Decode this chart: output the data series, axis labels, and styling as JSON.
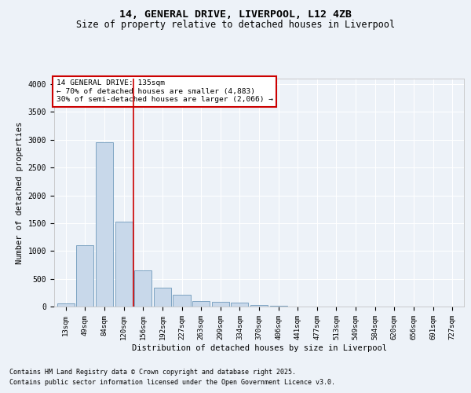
{
  "title_line1": "14, GENERAL DRIVE, LIVERPOOL, L12 4ZB",
  "title_line2": "Size of property relative to detached houses in Liverpool",
  "xlabel": "Distribution of detached houses by size in Liverpool",
  "ylabel": "Number of detached properties",
  "bar_labels": [
    "13sqm",
    "49sqm",
    "84sqm",
    "120sqm",
    "156sqm",
    "192sqm",
    "227sqm",
    "263sqm",
    "299sqm",
    "334sqm",
    "370sqm",
    "406sqm",
    "441sqm",
    "477sqm",
    "513sqm",
    "549sqm",
    "584sqm",
    "620sqm",
    "656sqm",
    "691sqm",
    "727sqm"
  ],
  "bar_values": [
    50,
    1100,
    2950,
    1530,
    650,
    340,
    215,
    95,
    90,
    65,
    30,
    10,
    5,
    0,
    0,
    0,
    0,
    0,
    0,
    0,
    0
  ],
  "bar_color": "#c8d8ea",
  "bar_edge_color": "#5a8ab0",
  "vline_x": 3.5,
  "vline_color": "#cc0000",
  "annotation_text": "14 GENERAL DRIVE: 135sqm\n← 70% of detached houses are smaller (4,883)\n30% of semi-detached houses are larger (2,066) →",
  "annotation_box_color": "#ffffff",
  "annotation_border_color": "#cc0000",
  "ylim": [
    0,
    4100
  ],
  "yticks": [
    0,
    500,
    1000,
    1500,
    2000,
    2500,
    3000,
    3500,
    4000
  ],
  "background_color": "#edf2f8",
  "grid_color": "#ffffff",
  "footer_line1": "Contains HM Land Registry data © Crown copyright and database right 2025.",
  "footer_line2": "Contains public sector information licensed under the Open Government Licence v3.0.",
  "title_fontsize": 9.5,
  "subtitle_fontsize": 8.5,
  "axis_label_fontsize": 7.5,
  "tick_fontsize": 6.5,
  "annotation_fontsize": 6.8,
  "footer_fontsize": 6.0
}
